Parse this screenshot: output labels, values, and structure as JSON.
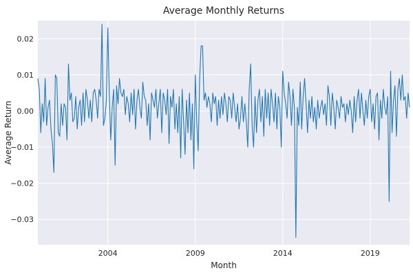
{
  "chart_data": {
    "type": "line",
    "title": "Average Monthly Returns",
    "xlabel": "Month",
    "ylabel": "Average Return",
    "x_start": "2000-01",
    "x_end": "2021-04",
    "xticks": [
      {
        "date": "2004-01",
        "label": "2004"
      },
      {
        "date": "2009-01",
        "label": "2009"
      },
      {
        "date": "2014-01",
        "label": "2014"
      },
      {
        "date": "2019-01",
        "label": "2019"
      }
    ],
    "ylim": [
      -0.037,
      0.025
    ],
    "yticks": [
      {
        "value": 0.02,
        "label": "0.02"
      },
      {
        "value": 0.01,
        "label": "0.01"
      },
      {
        "value": 0.0,
        "label": "0.00"
      },
      {
        "value": -0.01,
        "label": "−0.01"
      },
      {
        "value": -0.02,
        "label": "−0.02"
      },
      {
        "value": -0.03,
        "label": "−0.03"
      }
    ],
    "grid": true,
    "line_color": "#1f77b4",
    "background_color": "#eaeaf2",
    "grid_color": "#ffffff",
    "series": [
      {
        "points": [
          [
            "2000-01",
            0.009
          ],
          [
            "2000-02",
            0.006
          ],
          [
            "2000-03",
            -0.006
          ],
          [
            "2000-04",
            0.002
          ],
          [
            "2000-05",
            -0.003
          ],
          [
            "2000-06",
            0.009
          ],
          [
            "2000-07",
            -0.004
          ],
          [
            "2000-08",
            0.001
          ],
          [
            "2000-09",
            0.003
          ],
          [
            "2000-10",
            -0.005
          ],
          [
            "2000-11",
            -0.009
          ],
          [
            "2000-12",
            -0.017
          ],
          [
            "2001-01",
            0.01
          ],
          [
            "2001-02",
            0.009
          ],
          [
            "2001-03",
            -0.006
          ],
          [
            "2001-04",
            -0.007
          ],
          [
            "2001-05",
            0.002
          ],
          [
            "2001-06",
            -0.004
          ],
          [
            "2001-07",
            0.002
          ],
          [
            "2001-08",
            0.001
          ],
          [
            "2001-09",
            -0.008
          ],
          [
            "2001-10",
            0.013
          ],
          [
            "2001-11",
            0.003
          ],
          [
            "2001-12",
            0.005
          ],
          [
            "2002-01",
            -0.003
          ],
          [
            "2002-02",
            -0.002
          ],
          [
            "2002-03",
            0.004
          ],
          [
            "2002-04",
            -0.005
          ],
          [
            "2002-05",
            0.001
          ],
          [
            "2002-06",
            0.003
          ],
          [
            "2002-07",
            -0.004
          ],
          [
            "2002-08",
            0.005
          ],
          [
            "2002-09",
            -0.003
          ],
          [
            "2002-10",
            0.006
          ],
          [
            "2002-11",
            0.003
          ],
          [
            "2002-12",
            -0.002
          ],
          [
            "2003-01",
            0.003
          ],
          [
            "2003-02",
            -0.003
          ],
          [
            "2003-03",
            0.005
          ],
          [
            "2003-04",
            0.006
          ],
          [
            "2003-05",
            0.003
          ],
          [
            "2003-06",
            -0.002
          ],
          [
            "2003-07",
            0.006
          ],
          [
            "2003-08",
            0.004
          ],
          [
            "2003-09",
            0.024
          ],
          [
            "2003-10",
            -0.004
          ],
          [
            "2003-11",
            -0.002
          ],
          [
            "2003-12",
            0.003
          ],
          [
            "2004-01",
            0.023
          ],
          [
            "2004-02",
            0.005
          ],
          [
            "2004-03",
            -0.008
          ],
          [
            "2004-04",
            0.001
          ],
          [
            "2004-05",
            0.006
          ],
          [
            "2004-06",
            -0.015
          ],
          [
            "2004-07",
            0.007
          ],
          [
            "2004-08",
            0.002
          ],
          [
            "2004-09",
            0.009
          ],
          [
            "2004-10",
            0.005
          ],
          [
            "2004-11",
            0.004
          ],
          [
            "2004-12",
            0.006
          ],
          [
            "2005-01",
            -0.001
          ],
          [
            "2005-02",
            0.004
          ],
          [
            "2005-03",
            0.002
          ],
          [
            "2005-04",
            -0.003
          ],
          [
            "2005-05",
            0.005
          ],
          [
            "2005-06",
            -0.001
          ],
          [
            "2005-07",
            0.006
          ],
          [
            "2005-08",
            -0.005
          ],
          [
            "2005-09",
            0.003
          ],
          [
            "2005-10",
            0.006
          ],
          [
            "2005-11",
            0.001
          ],
          [
            "2005-12",
            -0.002
          ],
          [
            "2006-01",
            0.008
          ],
          [
            "2006-02",
            0.004
          ],
          [
            "2006-03",
            0.003
          ],
          [
            "2006-04",
            -0.004
          ],
          [
            "2006-05",
            0.002
          ],
          [
            "2006-06",
            -0.008
          ],
          [
            "2006-07",
            0.005
          ],
          [
            "2006-08",
            0.003
          ],
          [
            "2006-09",
            0.001
          ],
          [
            "2006-10",
            0.006
          ],
          [
            "2006-11",
            -0.002
          ],
          [
            "2006-12",
            0.002
          ],
          [
            "2007-01",
            0.006
          ],
          [
            "2007-02",
            -0.006
          ],
          [
            "2007-03",
            0.005
          ],
          [
            "2007-04",
            0.003
          ],
          [
            "2007-05",
            -0.001
          ],
          [
            "2007-06",
            0.006
          ],
          [
            "2007-07",
            -0.009
          ],
          [
            "2007-08",
            0.004
          ],
          [
            "2007-09",
            0.001
          ],
          [
            "2007-10",
            0.006
          ],
          [
            "2007-11",
            -0.005
          ],
          [
            "2007-12",
            0.002
          ],
          [
            "2008-01",
            -0.006
          ],
          [
            "2008-02",
            0.004
          ],
          [
            "2008-03",
            -0.013
          ],
          [
            "2008-04",
            0.006
          ],
          [
            "2008-05",
            -0.003
          ],
          [
            "2008-06",
            -0.012
          ],
          [
            "2008-07",
            0.003
          ],
          [
            "2008-08",
            -0.006
          ],
          [
            "2008-09",
            0.005
          ],
          [
            "2008-10",
            -0.008
          ],
          [
            "2008-11",
            0.002
          ],
          [
            "2008-12",
            -0.016
          ],
          [
            "2009-01",
            0.01
          ],
          [
            "2009-02",
            -0.003
          ],
          [
            "2009-03",
            -0.011
          ],
          [
            "2009-04",
            0.009
          ],
          [
            "2009-05",
            0.018
          ],
          [
            "2009-06",
            0.018
          ],
          [
            "2009-07",
            0.003
          ],
          [
            "2009-08",
            0.005
          ],
          [
            "2009-09",
            0.001
          ],
          [
            "2009-10",
            0.004
          ],
          [
            "2009-11",
            0.002
          ],
          [
            "2009-12",
            -0.003
          ],
          [
            "2010-01",
            0.005
          ],
          [
            "2010-02",
            0.002
          ],
          [
            "2010-03",
            0.004
          ],
          [
            "2010-04",
            -0.004
          ],
          [
            "2010-05",
            0.003
          ],
          [
            "2010-06",
            -0.002
          ],
          [
            "2010-07",
            0.004
          ],
          [
            "2010-08",
            -0.001
          ],
          [
            "2010-09",
            0.005
          ],
          [
            "2010-10",
            0.002
          ],
          [
            "2010-11",
            -0.003
          ],
          [
            "2010-12",
            0.004
          ],
          [
            "2011-01",
            0.003
          ],
          [
            "2011-02",
            -0.002
          ],
          [
            "2011-03",
            0.005
          ],
          [
            "2011-04",
            0.001
          ],
          [
            "2011-05",
            -0.003
          ],
          [
            "2011-06",
            0.002
          ],
          [
            "2011-07",
            -0.005
          ],
          [
            "2011-08",
            -0.002
          ],
          [
            "2011-09",
            0.004
          ],
          [
            "2011-10",
            -0.003
          ],
          [
            "2011-11",
            0.002
          ],
          [
            "2011-12",
            -0.003
          ],
          [
            "2012-01",
            -0.01
          ],
          [
            "2012-02",
            0.006
          ],
          [
            "2012-03",
            0.013
          ],
          [
            "2012-04",
            -0.004
          ],
          [
            "2012-05",
            -0.01
          ],
          [
            "2012-06",
            0.004
          ],
          [
            "2012-07",
            -0.006
          ],
          [
            "2012-08",
            0.003
          ],
          [
            "2012-09",
            0.006
          ],
          [
            "2012-10",
            -0.003
          ],
          [
            "2012-11",
            0.004
          ],
          [
            "2012-12",
            -0.007
          ],
          [
            "2013-01",
            0.006
          ],
          [
            "2013-02",
            -0.002
          ],
          [
            "2013-03",
            0.005
          ],
          [
            "2013-04",
            -0.004
          ],
          [
            "2013-05",
            0.006
          ],
          [
            "2013-06",
            0.002
          ],
          [
            "2013-07",
            -0.003
          ],
          [
            "2013-08",
            0.005
          ],
          [
            "2013-09",
            -0.005
          ],
          [
            "2013-10",
            0.004
          ],
          [
            "2013-11",
            0.001
          ],
          [
            "2013-12",
            -0.01
          ],
          [
            "2014-01",
            0.011
          ],
          [
            "2014-02",
            0.005
          ],
          [
            "2014-03",
            0.002
          ],
          [
            "2014-04",
            -0.002
          ],
          [
            "2014-05",
            0.008
          ],
          [
            "2014-06",
            0.004
          ],
          [
            "2014-07",
            -0.004
          ],
          [
            "2014-08",
            0.006
          ],
          [
            "2014-09",
            0.001
          ],
          [
            "2014-10",
            -0.035
          ],
          [
            "2014-11",
            0.001
          ],
          [
            "2014-12",
            -0.004
          ],
          [
            "2015-01",
            0.008
          ],
          [
            "2015-02",
            -0.005
          ],
          [
            "2015-03",
            0.004
          ],
          [
            "2015-04",
            0.009
          ],
          [
            "2015-05",
            0.002
          ],
          [
            "2015-06",
            -0.006
          ],
          [
            "2015-07",
            0.003
          ],
          [
            "2015-08",
            -0.002
          ],
          [
            "2015-09",
            0.004
          ],
          [
            "2015-10",
            -0.003
          ],
          [
            "2015-11",
            0.001
          ],
          [
            "2015-12",
            -0.005
          ],
          [
            "2016-01",
            0.003
          ],
          [
            "2016-02",
            -0.002
          ],
          [
            "2016-03",
            0.001
          ],
          [
            "2016-04",
            0.003
          ],
          [
            "2016-05",
            -0.001
          ],
          [
            "2016-06",
            0.002
          ],
          [
            "2016-07",
            -0.004
          ],
          [
            "2016-08",
            0.007
          ],
          [
            "2016-09",
            0.004
          ],
          [
            "2016-10",
            -0.004
          ],
          [
            "2016-11",
            0.005
          ],
          [
            "2016-12",
            0.001
          ],
          [
            "2017-01",
            -0.005
          ],
          [
            "2017-02",
            0.003
          ],
          [
            "2017-03",
            0.001
          ],
          [
            "2017-04",
            -0.002
          ],
          [
            "2017-05",
            0.004
          ],
          [
            "2017-06",
            0.001
          ],
          [
            "2017-07",
            0.002
          ],
          [
            "2017-08",
            -0.003
          ],
          [
            "2017-09",
            0.002
          ],
          [
            "2017-10",
            -0.001
          ],
          [
            "2017-11",
            0.003
          ],
          [
            "2017-12",
            0.0
          ],
          [
            "2018-01",
            -0.006
          ],
          [
            "2018-02",
            0.004
          ],
          [
            "2018-03",
            -0.003
          ],
          [
            "2018-04",
            0.003
          ],
          [
            "2018-05",
            0.006
          ],
          [
            "2018-06",
            -0.002
          ],
          [
            "2018-07",
            0.005
          ],
          [
            "2018-08",
            0.0
          ],
          [
            "2018-09",
            -0.004
          ],
          [
            "2018-10",
            0.003
          ],
          [
            "2018-11",
            -0.002
          ],
          [
            "2018-12",
            0.004
          ],
          [
            "2019-01",
            0.006
          ],
          [
            "2019-02",
            -0.003
          ],
          [
            "2019-03",
            0.002
          ],
          [
            "2019-04",
            -0.005
          ],
          [
            "2019-05",
            0.004
          ],
          [
            "2019-06",
            0.005
          ],
          [
            "2019-07",
            -0.008
          ],
          [
            "2019-08",
            0.003
          ],
          [
            "2019-09",
            -0.002
          ],
          [
            "2019-10",
            0.006
          ],
          [
            "2019-11",
            0.001
          ],
          [
            "2019-12",
            -0.001
          ],
          [
            "2020-01",
            0.004
          ],
          [
            "2020-02",
            -0.025
          ],
          [
            "2020-03",
            0.011
          ],
          [
            "2020-04",
            -0.006
          ],
          [
            "2020-05",
            0.003
          ],
          [
            "2020-06",
            0.007
          ],
          [
            "2020-07",
            -0.007
          ],
          [
            "2020-08",
            0.006
          ],
          [
            "2020-09",
            0.009
          ],
          [
            "2020-10",
            0.003
          ],
          [
            "2020-11",
            0.01
          ],
          [
            "2020-12",
            0.003
          ],
          [
            "2021-01",
            0.004
          ],
          [
            "2021-02",
            -0.002
          ],
          [
            "2021-03",
            0.005
          ],
          [
            "2021-04",
            0.001
          ]
        ]
      }
    ]
  }
}
